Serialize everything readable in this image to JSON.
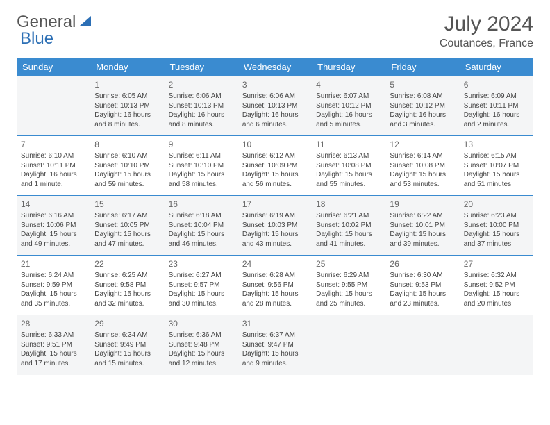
{
  "logo": {
    "word1": "General",
    "word2": "Blue"
  },
  "header": {
    "month_title": "July 2024",
    "location": "Coutances, France"
  },
  "colors": {
    "header_bg": "#3a8bd0",
    "header_text": "#ffffff",
    "row_alt_bg": "#f4f5f6",
    "border": "#3a8bd0",
    "text": "#444444",
    "title_text": "#555555"
  },
  "day_headers": [
    "Sunday",
    "Monday",
    "Tuesday",
    "Wednesday",
    "Thursday",
    "Friday",
    "Saturday"
  ],
  "weeks": [
    [
      {
        "num": "",
        "lines": []
      },
      {
        "num": "1",
        "lines": [
          "Sunrise: 6:05 AM",
          "Sunset: 10:13 PM",
          "Daylight: 16 hours and 8 minutes."
        ]
      },
      {
        "num": "2",
        "lines": [
          "Sunrise: 6:06 AM",
          "Sunset: 10:13 PM",
          "Daylight: 16 hours and 8 minutes."
        ]
      },
      {
        "num": "3",
        "lines": [
          "Sunrise: 6:06 AM",
          "Sunset: 10:13 PM",
          "Daylight: 16 hours and 6 minutes."
        ]
      },
      {
        "num": "4",
        "lines": [
          "Sunrise: 6:07 AM",
          "Sunset: 10:12 PM",
          "Daylight: 16 hours and 5 minutes."
        ]
      },
      {
        "num": "5",
        "lines": [
          "Sunrise: 6:08 AM",
          "Sunset: 10:12 PM",
          "Daylight: 16 hours and 3 minutes."
        ]
      },
      {
        "num": "6",
        "lines": [
          "Sunrise: 6:09 AM",
          "Sunset: 10:11 PM",
          "Daylight: 16 hours and 2 minutes."
        ]
      }
    ],
    [
      {
        "num": "7",
        "lines": [
          "Sunrise: 6:10 AM",
          "Sunset: 10:11 PM",
          "Daylight: 16 hours and 1 minute."
        ]
      },
      {
        "num": "8",
        "lines": [
          "Sunrise: 6:10 AM",
          "Sunset: 10:10 PM",
          "Daylight: 15 hours and 59 minutes."
        ]
      },
      {
        "num": "9",
        "lines": [
          "Sunrise: 6:11 AM",
          "Sunset: 10:10 PM",
          "Daylight: 15 hours and 58 minutes."
        ]
      },
      {
        "num": "10",
        "lines": [
          "Sunrise: 6:12 AM",
          "Sunset: 10:09 PM",
          "Daylight: 15 hours and 56 minutes."
        ]
      },
      {
        "num": "11",
        "lines": [
          "Sunrise: 6:13 AM",
          "Sunset: 10:08 PM",
          "Daylight: 15 hours and 55 minutes."
        ]
      },
      {
        "num": "12",
        "lines": [
          "Sunrise: 6:14 AM",
          "Sunset: 10:08 PM",
          "Daylight: 15 hours and 53 minutes."
        ]
      },
      {
        "num": "13",
        "lines": [
          "Sunrise: 6:15 AM",
          "Sunset: 10:07 PM",
          "Daylight: 15 hours and 51 minutes."
        ]
      }
    ],
    [
      {
        "num": "14",
        "lines": [
          "Sunrise: 6:16 AM",
          "Sunset: 10:06 PM",
          "Daylight: 15 hours and 49 minutes."
        ]
      },
      {
        "num": "15",
        "lines": [
          "Sunrise: 6:17 AM",
          "Sunset: 10:05 PM",
          "Daylight: 15 hours and 47 minutes."
        ]
      },
      {
        "num": "16",
        "lines": [
          "Sunrise: 6:18 AM",
          "Sunset: 10:04 PM",
          "Daylight: 15 hours and 46 minutes."
        ]
      },
      {
        "num": "17",
        "lines": [
          "Sunrise: 6:19 AM",
          "Sunset: 10:03 PM",
          "Daylight: 15 hours and 43 minutes."
        ]
      },
      {
        "num": "18",
        "lines": [
          "Sunrise: 6:21 AM",
          "Sunset: 10:02 PM",
          "Daylight: 15 hours and 41 minutes."
        ]
      },
      {
        "num": "19",
        "lines": [
          "Sunrise: 6:22 AM",
          "Sunset: 10:01 PM",
          "Daylight: 15 hours and 39 minutes."
        ]
      },
      {
        "num": "20",
        "lines": [
          "Sunrise: 6:23 AM",
          "Sunset: 10:00 PM",
          "Daylight: 15 hours and 37 minutes."
        ]
      }
    ],
    [
      {
        "num": "21",
        "lines": [
          "Sunrise: 6:24 AM",
          "Sunset: 9:59 PM",
          "Daylight: 15 hours and 35 minutes."
        ]
      },
      {
        "num": "22",
        "lines": [
          "Sunrise: 6:25 AM",
          "Sunset: 9:58 PM",
          "Daylight: 15 hours and 32 minutes."
        ]
      },
      {
        "num": "23",
        "lines": [
          "Sunrise: 6:27 AM",
          "Sunset: 9:57 PM",
          "Daylight: 15 hours and 30 minutes."
        ]
      },
      {
        "num": "24",
        "lines": [
          "Sunrise: 6:28 AM",
          "Sunset: 9:56 PM",
          "Daylight: 15 hours and 28 minutes."
        ]
      },
      {
        "num": "25",
        "lines": [
          "Sunrise: 6:29 AM",
          "Sunset: 9:55 PM",
          "Daylight: 15 hours and 25 minutes."
        ]
      },
      {
        "num": "26",
        "lines": [
          "Sunrise: 6:30 AM",
          "Sunset: 9:53 PM",
          "Daylight: 15 hours and 23 minutes."
        ]
      },
      {
        "num": "27",
        "lines": [
          "Sunrise: 6:32 AM",
          "Sunset: 9:52 PM",
          "Daylight: 15 hours and 20 minutes."
        ]
      }
    ],
    [
      {
        "num": "28",
        "lines": [
          "Sunrise: 6:33 AM",
          "Sunset: 9:51 PM",
          "Daylight: 15 hours and 17 minutes."
        ]
      },
      {
        "num": "29",
        "lines": [
          "Sunrise: 6:34 AM",
          "Sunset: 9:49 PM",
          "Daylight: 15 hours and 15 minutes."
        ]
      },
      {
        "num": "30",
        "lines": [
          "Sunrise: 6:36 AM",
          "Sunset: 9:48 PM",
          "Daylight: 15 hours and 12 minutes."
        ]
      },
      {
        "num": "31",
        "lines": [
          "Sunrise: 6:37 AM",
          "Sunset: 9:47 PM",
          "Daylight: 15 hours and 9 minutes."
        ]
      },
      {
        "num": "",
        "lines": []
      },
      {
        "num": "",
        "lines": []
      },
      {
        "num": "",
        "lines": []
      }
    ]
  ]
}
